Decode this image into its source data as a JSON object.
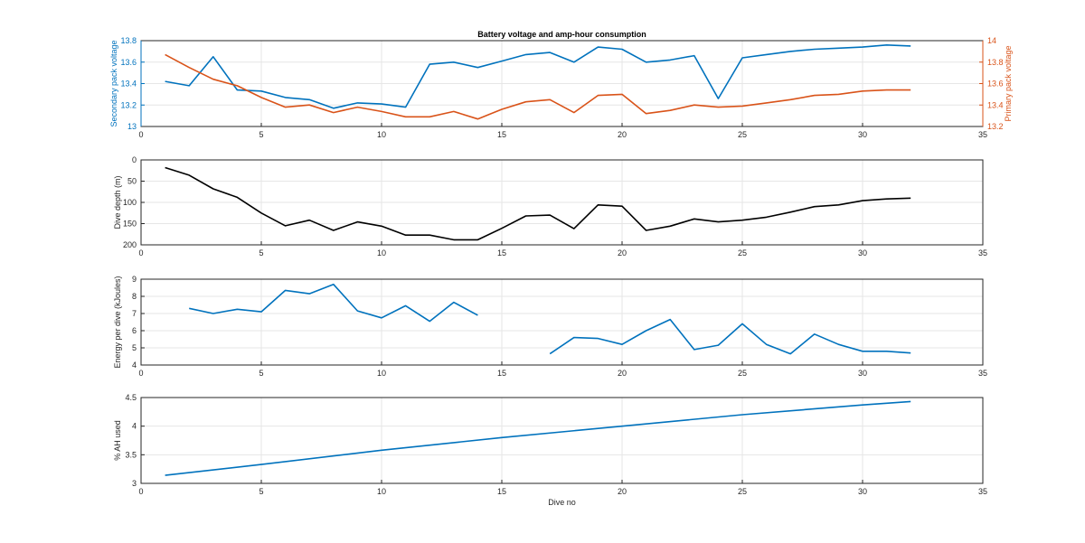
{
  "chart_data": [
    {
      "type": "line",
      "title": "Battery voltage and amp-hour consumption",
      "xlim": [
        0,
        35
      ],
      "xticks": [
        0,
        5,
        10,
        15,
        20,
        25,
        30,
        35
      ],
      "ylabel_left": "Secondary pack voltage",
      "ylabel_right": "Primary pack voltage",
      "ylim_left": [
        13,
        13.8
      ],
      "yticks_left": [
        "13",
        "13.2",
        "13.4",
        "13.6",
        "13.8"
      ],
      "ylim_right": [
        13.2,
        14
      ],
      "yticks_right": [
        "13.2",
        "13.4",
        "13.6",
        "13.8",
        "14"
      ],
      "grid": true,
      "series": [
        {
          "axis": "left",
          "color": "#0072BD",
          "x": [
            1,
            2,
            3,
            4,
            5,
            6,
            7,
            8,
            9,
            10,
            11,
            12,
            13,
            14,
            15,
            16,
            17,
            18,
            19,
            20,
            21,
            22,
            23,
            24,
            25,
            26,
            27,
            28,
            29,
            30,
            31,
            32
          ],
          "y": [
            13.42,
            13.38,
            13.65,
            13.34,
            13.33,
            13.27,
            13.25,
            13.17,
            13.22,
            13.21,
            13.18,
            13.58,
            13.6,
            13.55,
            13.61,
            13.67,
            13.69,
            13.6,
            13.74,
            13.72,
            13.6,
            13.62,
            13.66,
            13.26,
            13.64,
            13.67,
            13.7,
            13.72,
            13.73,
            13.74,
            13.76,
            13.75
          ]
        },
        {
          "axis": "right",
          "color": "#D95319",
          "x": [
            1,
            2,
            3,
            4,
            5,
            6,
            7,
            8,
            9,
            10,
            11,
            12,
            13,
            14,
            15,
            16,
            17,
            18,
            19,
            20,
            21,
            22,
            23,
            24,
            25,
            26,
            27,
            28,
            29,
            30,
            31,
            32
          ],
          "y": [
            13.87,
            13.75,
            13.64,
            13.58,
            13.47,
            13.38,
            13.4,
            13.33,
            13.38,
            13.34,
            13.29,
            13.29,
            13.34,
            13.27,
            13.36,
            13.43,
            13.45,
            13.33,
            13.49,
            13.5,
            13.32,
            13.35,
            13.4,
            13.38,
            13.39,
            13.42,
            13.45,
            13.49,
            13.5,
            13.53,
            13.54,
            13.54
          ]
        }
      ]
    },
    {
      "type": "line",
      "xlim": [
        0,
        35
      ],
      "xticks": [
        0,
        5,
        10,
        15,
        20,
        25,
        30,
        35
      ],
      "ylabel": "Dive depth (m)",
      "ylim": [
        0,
        200
      ],
      "y_reversed": true,
      "yticks": [
        "0",
        "50",
        "100",
        "150",
        "200"
      ],
      "grid": true,
      "series": [
        {
          "color": "#000000",
          "x": [
            1,
            2,
            3,
            4,
            5,
            6,
            7,
            8,
            9,
            10,
            11,
            12,
            13,
            14,
            15,
            16,
            17,
            18,
            19,
            20,
            21,
            22,
            23,
            24,
            25,
            26,
            27,
            28,
            29,
            30,
            31,
            32
          ],
          "y": [
            18,
            36,
            68,
            88,
            125,
            155,
            142,
            166,
            146,
            156,
            177,
            177,
            188,
            188,
            161,
            132,
            130,
            162,
            106,
            109,
            166,
            156,
            139,
            146,
            142,
            135,
            123,
            110,
            106,
            96,
            92,
            90
          ]
        }
      ]
    },
    {
      "type": "line",
      "xlim": [
        0,
        35
      ],
      "xticks": [
        0,
        5,
        10,
        15,
        20,
        25,
        30,
        35
      ],
      "ylabel": "Energy per dive (kJoules)",
      "ylim": [
        4,
        9
      ],
      "yticks": [
        "4",
        "5",
        "6",
        "7",
        "8",
        "9"
      ],
      "grid": true,
      "series": [
        {
          "color": "#0072BD",
          "segments": [
            {
              "x": [
                2,
                3,
                4,
                5,
                6,
                7,
                8,
                9,
                10,
                11,
                12,
                13,
                14
              ],
              "y": [
                7.3,
                7.0,
                7.25,
                7.1,
                8.35,
                8.15,
                8.7,
                7.15,
                6.75,
                7.45,
                6.55,
                7.65,
                6.9
              ]
            },
            {
              "x": [
                17,
                18,
                19,
                20,
                21,
                22,
                23,
                24,
                25,
                26,
                27,
                28,
                29,
                30,
                31,
                32
              ],
              "y": [
                4.65,
                5.6,
                5.55,
                5.2,
                6.0,
                6.65,
                4.9,
                5.15,
                6.4,
                5.2,
                4.65,
                5.8,
                5.2,
                4.8,
                4.8,
                4.7
              ]
            }
          ]
        }
      ]
    },
    {
      "type": "line",
      "xlim": [
        0,
        35
      ],
      "xticks": [
        0,
        5,
        10,
        15,
        20,
        25,
        30,
        35
      ],
      "xlabel": "Dive no",
      "ylabel": "% AH used",
      "ylim": [
        3,
        4.5
      ],
      "yticks": [
        "3",
        "3.5",
        "4",
        "4.5"
      ],
      "grid": true,
      "series": [
        {
          "color": "#0072BD",
          "x": [
            1,
            5,
            10,
            15,
            20,
            25,
            30,
            32
          ],
          "y": [
            3.14,
            3.33,
            3.58,
            3.8,
            4.0,
            4.2,
            4.37,
            4.43
          ]
        }
      ]
    }
  ]
}
